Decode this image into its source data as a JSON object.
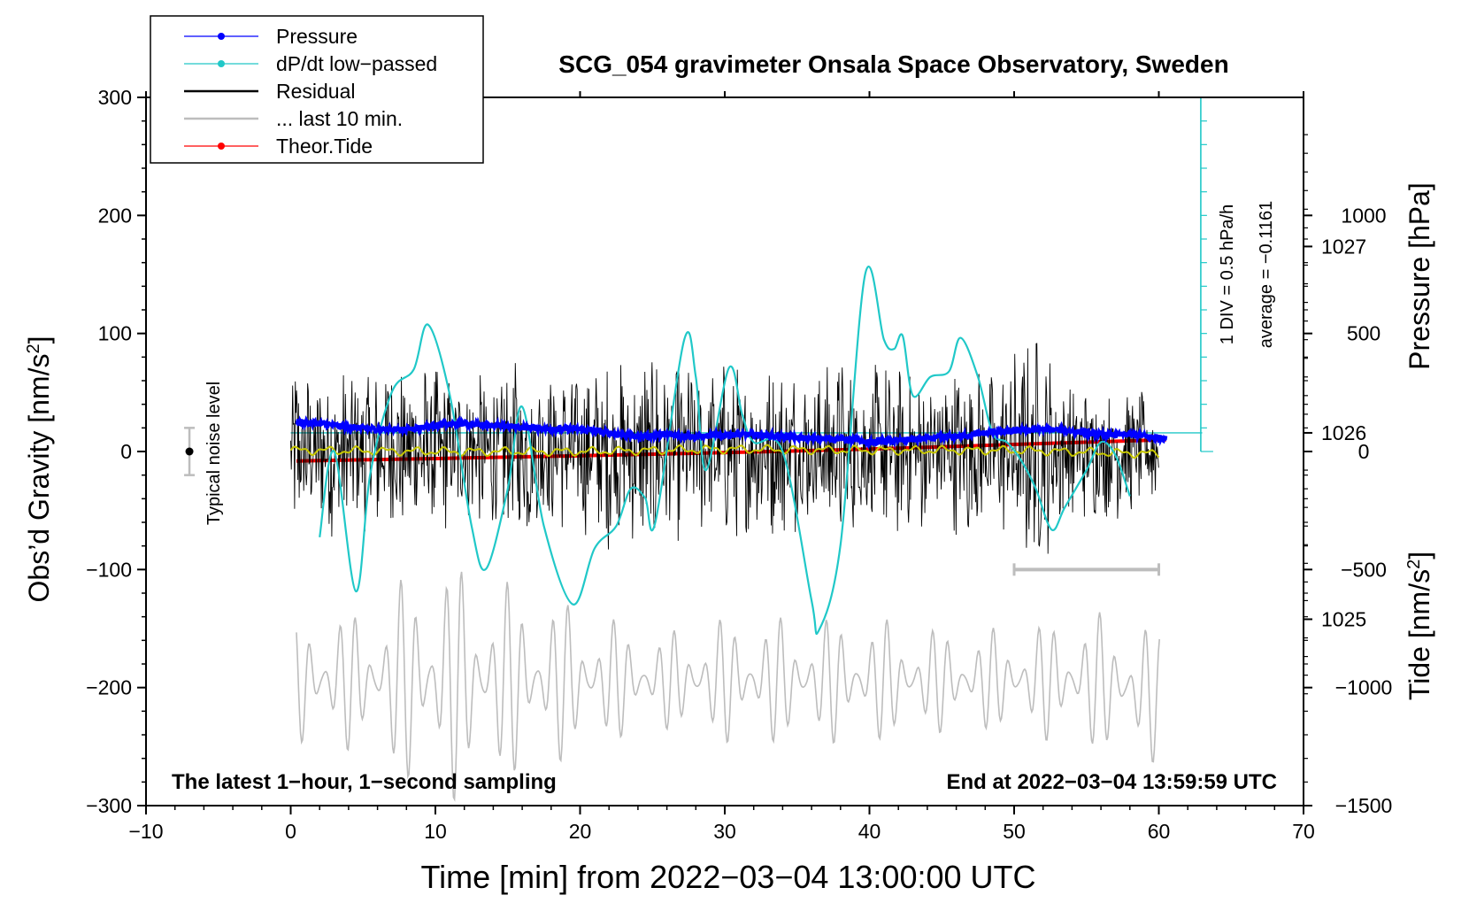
{
  "chart_data": {
    "type": "line",
    "title": "SCG_054 gravimeter Onsala Space Observatory, Sweden",
    "xlabel": "Time [min] from 2022−03−04 13:00:00 UTC",
    "ylabel_left_main": "Obs’d Gravity [nm/s",
    "ylabel_left_sup": "2",
    "ylabel_left_end": "]",
    "ylabel_right_pressure": "Pressure [hPa]",
    "ylabel_right_tide_main": "Tide [nm/s",
    "ylabel_right_tide_sup": "2",
    "ylabel_right_tide_end": "]",
    "xlim": [
      -10,
      70
    ],
    "ylim_left": [
      -300,
      300
    ],
    "ylim_pressure": [
      1024.0,
      1027.8
    ],
    "ylim_tide": [
      -1500,
      1500
    ],
    "x_ticks": [
      -10,
      0,
      10,
      20,
      30,
      40,
      50,
      60,
      70
    ],
    "x_tick_labels": [
      "−10",
      "0",
      "10",
      "20",
      "30",
      "40",
      "50",
      "60",
      "70"
    ],
    "y_left_ticks": [
      300,
      200,
      100,
      0,
      -100,
      -200,
      -300
    ],
    "y_left_tick_labels": [
      "300",
      "200",
      "100",
      "0",
      "−100",
      "−200",
      "−300"
    ],
    "pressure_ticks": [
      1027,
      1026,
      1025
    ],
    "pressure_tick_labels": [
      "1027",
      "1026",
      "1025"
    ],
    "tide_ticks": [
      1000,
      500,
      0,
      -500,
      -1000,
      -1500
    ],
    "tide_tick_labels": [
      "1000",
      "500",
      "0",
      "−500",
      "−1000",
      "−1500"
    ],
    "legend": {
      "placement": "top-left",
      "entries": [
        {
          "label": "Pressure",
          "color": "#0000ff",
          "marker": true
        },
        {
          "label": "dP/dt low−passed",
          "color": "#20c8c8",
          "marker": true
        },
        {
          "label": "Residual",
          "color": "#000000",
          "marker": false
        },
        {
          "label": "... last 10 min.",
          "color": "#bdbdbd",
          "marker": false
        },
        {
          "label": "Theor.Tide",
          "color": "#ff0000",
          "marker": true
        }
      ]
    },
    "annotations": {
      "bottom_left": "The latest 1−hour, 1−second sampling",
      "bottom_right": "End at 2022−03−04 13:59:59 UTC",
      "noise_label": "Typical noise level",
      "noise_level": 20,
      "dpdt_scale": "1 DIV = 0.5 hPa/h",
      "dpdt_average": "average = −0.1161"
    },
    "colors": {
      "pressure": "#0000ff",
      "dpdt": "#20c8c8",
      "residual": "#000000",
      "residual_smooth": "#c8c800",
      "last10": "#bdbdbd",
      "tide": "#ff0000"
    },
    "series": [
      {
        "name": "Pressure",
        "axis": "pressure_hPa",
        "x": [
          0.4,
          2,
          4,
          6,
          8,
          10,
          12,
          14,
          16,
          18,
          20,
          22,
          24,
          26,
          28,
          30,
          32,
          34,
          36,
          38,
          40,
          42,
          44,
          46,
          48,
          50,
          52,
          54,
          56,
          58,
          60.5
        ],
        "values": [
          1026.06,
          1026.05,
          1026.03,
          1026.02,
          1026.02,
          1026.04,
          1026.05,
          1026.04,
          1026.03,
          1026.02,
          1026.02,
          1026.0,
          1025.98,
          1025.99,
          1025.98,
          1025.99,
          1025.99,
          1025.98,
          1025.97,
          1025.97,
          1025.95,
          1025.96,
          1025.97,
          1025.98,
          1026.0,
          1026.01,
          1026.02,
          1026.01,
          1025.99,
          1025.99,
          1025.97
        ]
      },
      {
        "name": "dP/dt low−passed",
        "axis": "pressure_hPa",
        "x": [
          2,
          3,
          4.5,
          5.5,
          7,
          8.5,
          9.5,
          11,
          12.5,
          13.5,
          15,
          16,
          17.5,
          19.5,
          21,
          22.5,
          23.5,
          24.5,
          25.2,
          27.2,
          28,
          28.7,
          30.3,
          31.2,
          32,
          34,
          36,
          36.5,
          38,
          39.7,
          41,
          41.7,
          42.3,
          43,
          44.2,
          45.5,
          46.3,
          47.5,
          48.5,
          49.5,
          50.5,
          51.5,
          52.6,
          53.5,
          55,
          56,
          57,
          58
        ],
        "values": [
          1025.44,
          1025.9,
          1025.15,
          1025.78,
          1026.22,
          1026.34,
          1026.58,
          1026.2,
          1025.5,
          1025.27,
          1025.7,
          1026.14,
          1025.5,
          1025.08,
          1025.38,
          1025.5,
          1025.7,
          1025.65,
          1025.52,
          1026.5,
          1026.3,
          1025.8,
          1026.35,
          1026.1,
          1025.95,
          1025.9,
          1025.1,
          1024.94,
          1025.4,
          1026.85,
          1026.5,
          1026.45,
          1026.52,
          1026.2,
          1026.3,
          1026.33,
          1026.51,
          1026.3,
          1026.0,
          1025.95,
          1025.85,
          1025.7,
          1025.48,
          1025.6,
          1025.8,
          1025.95,
          1025.88,
          1025.66
        ]
      },
      {
        "name": "Residual envelope",
        "axis": "gravity_nm_s2",
        "x": [
          0,
          1,
          2,
          3,
          4,
          5,
          6,
          7,
          8,
          9,
          10,
          11,
          12,
          13,
          14,
          15,
          16,
          17,
          18,
          19,
          20,
          21,
          22,
          23,
          24,
          25,
          26,
          27,
          28,
          29,
          30,
          31,
          32,
          33,
          34,
          35,
          36,
          37,
          38,
          39,
          40,
          41,
          42,
          43,
          44,
          45,
          46,
          47,
          48,
          49,
          50,
          51,
          52,
          53,
          54,
          55,
          56,
          57,
          58,
          59,
          60
        ],
        "values": [
          85,
          70,
          65,
          75,
          70,
          70,
          75,
          85,
          70,
          80,
          75,
          70,
          60,
          70,
          65,
          80,
          80,
          70,
          65,
          70,
          70,
          75,
          85,
          75,
          80,
          100,
          70,
          80,
          75,
          70,
          80,
          75,
          70,
          80,
          75,
          75,
          65,
          80,
          85,
          70,
          70,
          80,
          75,
          65,
          75,
          75,
          75,
          80,
          65,
          70,
          90,
          105,
          100,
          70,
          60,
          60,
          55,
          60,
          55,
          50,
          45
        ]
      },
      {
        "name": "Residual smoothed",
        "axis": "gravity_nm_s2",
        "x": [
          0,
          10,
          20,
          30,
          40,
          50,
          60
        ],
        "values": [
          1,
          0,
          0,
          2,
          1,
          1,
          -2
        ]
      },
      {
        "name": "... last 10 min.",
        "axis": "gravity_nm_s2",
        "x": [
          1,
          5,
          10,
          15,
          20,
          25,
          30,
          35,
          40,
          45,
          50,
          55,
          60
        ],
        "values": [
          -194,
          -194,
          -194,
          -194,
          -194,
          -194,
          -194,
          -194,
          -194,
          -194,
          -194,
          -194,
          -205
        ],
        "amplitude": [
          60,
          60,
          110,
          85,
          65,
          40,
          55,
          55,
          55,
          45,
          45,
          60,
          60
        ]
      },
      {
        "name": "Theor.Tide",
        "axis": "tide_nm_s2",
        "x": [
          0.4,
          10,
          20,
          30,
          40,
          50,
          60.5
        ],
        "values": [
          -40,
          -30,
          -18,
          -5,
          10,
          30,
          50
        ]
      },
      {
        "name": "Last 10 min marker",
        "axis": "gravity_nm_s2",
        "x": [
          50,
          60
        ],
        "values": [
          -100,
          -100
        ]
      }
    ]
  }
}
